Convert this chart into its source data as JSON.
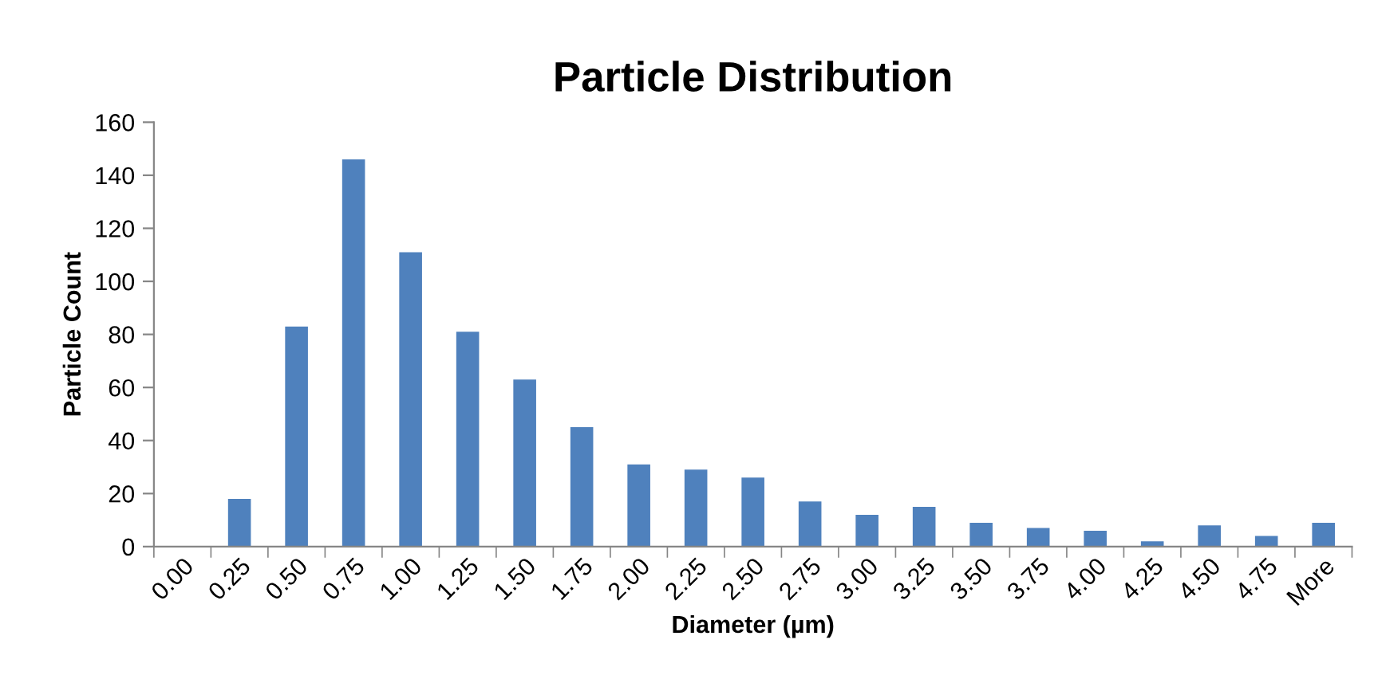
{
  "chart_data": {
    "type": "bar",
    "title": "Particle Distribution",
    "xlabel": "Diameter (µm)",
    "ylabel": "Particle Count",
    "categories": [
      "0.00",
      "0.25",
      "0.50",
      "0.75",
      "1.00",
      "1.25",
      "1.50",
      "1.75",
      "2.00",
      "2.25",
      "2.50",
      "2.75",
      "3.00",
      "3.25",
      "3.50",
      "3.75",
      "4.00",
      "4.25",
      "4.50",
      "4.75",
      "More"
    ],
    "values": [
      0,
      18,
      83,
      146,
      111,
      81,
      63,
      45,
      31,
      29,
      26,
      17,
      12,
      15,
      9,
      7,
      6,
      2,
      8,
      4,
      9
    ],
    "color": "#4f81bd",
    "ylim": [
      0,
      160
    ],
    "yticks": [
      0,
      20,
      40,
      60,
      80,
      100,
      120,
      140,
      160
    ],
    "grid": false,
    "legend": false
  }
}
